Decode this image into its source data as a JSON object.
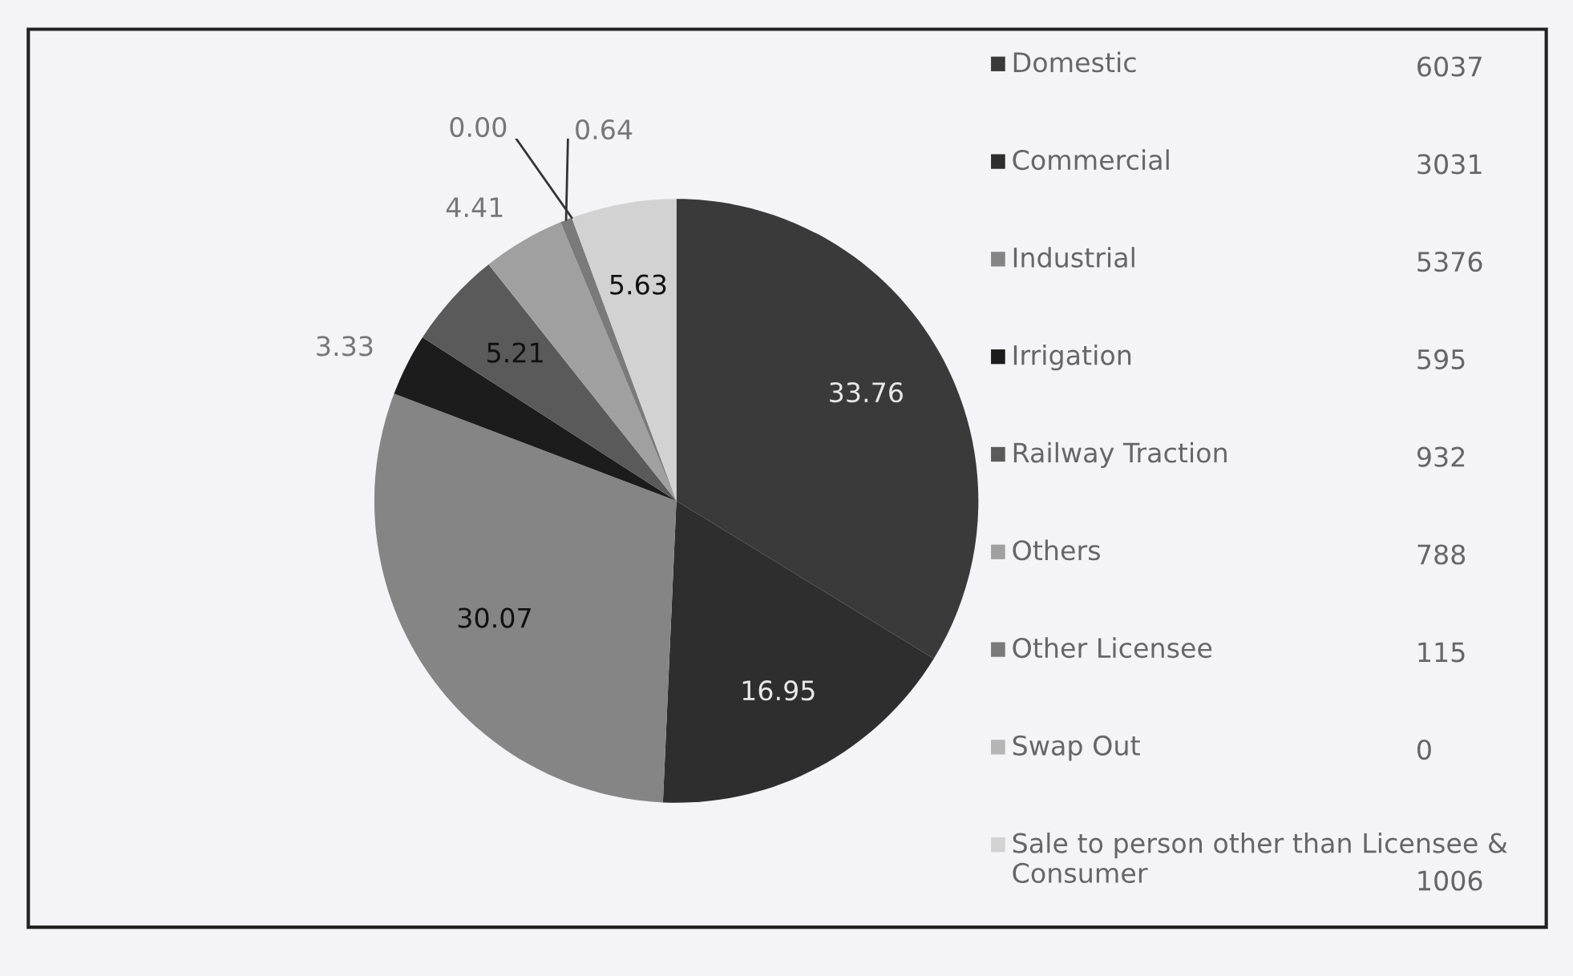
{
  "chart_data": {
    "type": "pie",
    "categories": [
      "Domestic",
      "Commercial",
      "Industrial",
      "Irrigation",
      "Railway Traction",
      "Others",
      "Other Licensee",
      "Swap Out",
      "Sale to person other than Licensee & Consumer"
    ],
    "values": [
      33.76,
      16.95,
      30.07,
      3.33,
      5.21,
      4.41,
      0.64,
      0.0,
      5.63
    ],
    "annotations": [
      "6037",
      "3031",
      "5376",
      "595",
      "932",
      "788",
      "115",
      "0",
      "1006"
    ],
    "value_labels": [
      "33.76",
      "16.95",
      "30.07",
      "3.33",
      "5.21",
      "4.41",
      "0.64",
      "0.00",
      "5.63"
    ],
    "colors": [
      "#3a3a3a",
      "#2e2e2e",
      "#858585",
      "#1c1c1c",
      "#5a5a5a",
      "#a0a0a0",
      "#7a7a7a",
      "#b5b5b5",
      "#d2d2d2"
    ],
    "legend": "right"
  }
}
